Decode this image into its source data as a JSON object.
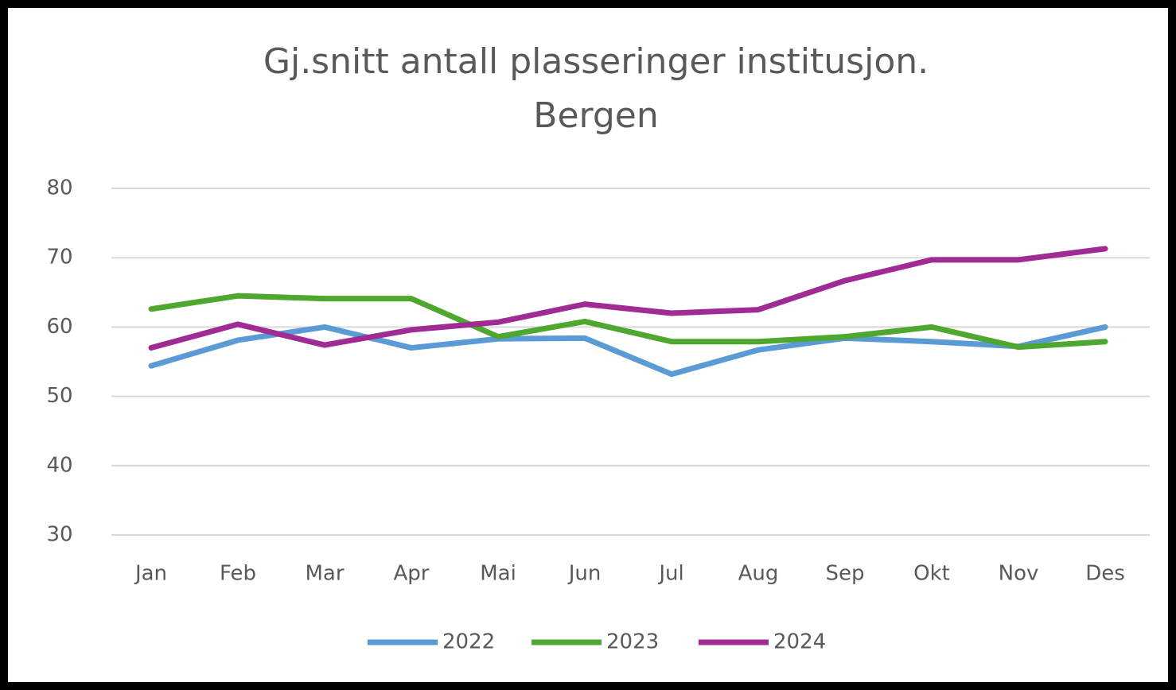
{
  "chart_data": {
    "type": "line",
    "title": [
      "Gj.snitt antall plasseringer institusjon.",
      "Bergen"
    ],
    "categories": [
      "Jan",
      "Feb",
      "Mar",
      "Apr",
      "Mai",
      "Jun",
      "Jul",
      "Aug",
      "Sep",
      "Okt",
      "Nov",
      "Des"
    ],
    "series": [
      {
        "name": "2022",
        "color": "#5b9bd5",
        "values": [
          54.4,
          58.1,
          60,
          57,
          58.3,
          58.4,
          53.2,
          56.7,
          58.4,
          57.9,
          57.2,
          60
        ]
      },
      {
        "name": "2023",
        "color": "#4ea72e",
        "values": [
          62.6,
          64.5,
          64.1,
          64.1,
          58.6,
          60.8,
          57.9,
          57.9,
          58.6,
          60,
          57.1,
          57.9
        ]
      },
      {
        "name": "2024",
        "color": "#a02b93",
        "values": [
          57,
          60.4,
          57.4,
          59.6,
          60.7,
          63.3,
          62,
          62.5,
          66.7,
          69.7,
          69.7,
          71.3
        ]
      }
    ],
    "ylim": [
      30,
      80
    ],
    "yticks": [
      30,
      40,
      50,
      60,
      70,
      80
    ],
    "grid": true,
    "legend": "bottom"
  }
}
